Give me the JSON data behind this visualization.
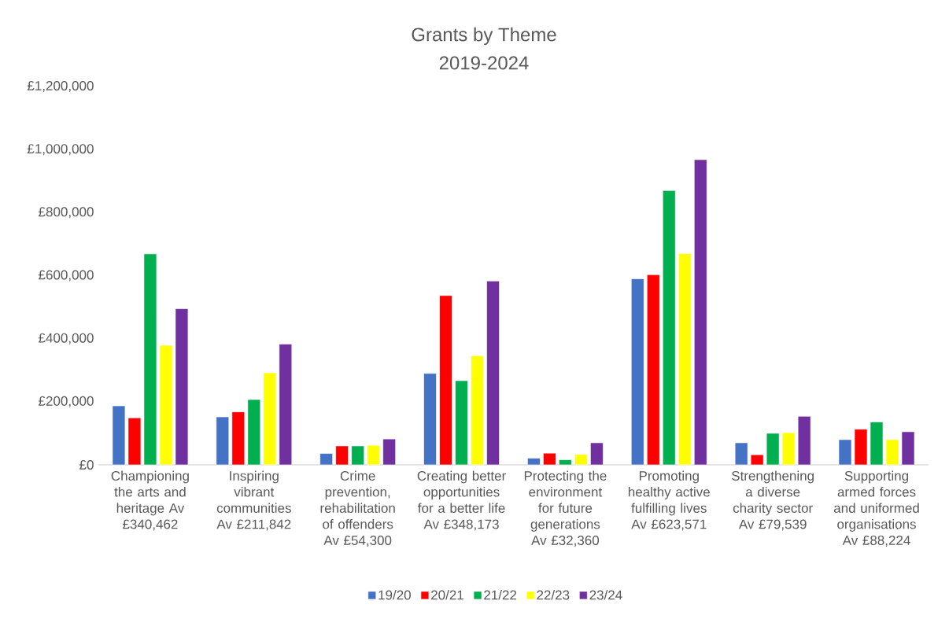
{
  "chart_data": {
    "type": "bar",
    "title": "Grants by Theme",
    "subtitle": "2019-2024",
    "categories": [
      "Championing the arts and heritage Av £340,462",
      "Inspiring vibrant communities Av £211,842",
      "Crime prevention, rehabilitation of offenders Av £54,300",
      "Creating better opportunities for a better life Av £348,173",
      "Protecting the environment for future generations Av £32,360",
      "Promoting healthy active fulfilling lives Av £623,571",
      "Strengthening a diverse charity sector Av £79,539",
      "Supporting armed forces and uniformed organisations Av £88,224"
    ],
    "series": [
      {
        "name": "19/20",
        "color": "#4472c4",
        "values": [
          187000,
          152000,
          36000,
          290000,
          21000,
          590000,
          70000,
          80000
        ]
      },
      {
        "name": "20/21",
        "color": "#ff0000",
        "values": [
          149000,
          168000,
          60000,
          537000,
          37000,
          603000,
          32000,
          113000
        ]
      },
      {
        "name": "21/22",
        "color": "#00b050",
        "values": [
          669000,
          207000,
          60000,
          267000,
          16000,
          870000,
          100000,
          136000
        ]
      },
      {
        "name": "22/23",
        "color": "#ffff00",
        "values": [
          379000,
          292000,
          62000,
          346000,
          33000,
          670000,
          102000,
          80000
        ]
      },
      {
        "name": "23/24",
        "color": "#7030a0",
        "values": [
          495000,
          383000,
          82000,
          583000,
          70000,
          968000,
          154000,
          105000
        ]
      }
    ],
    "ylim": [
      0,
      1200000
    ],
    "yticks": [
      {
        "value": 0,
        "label": "£0"
      },
      {
        "value": 200000,
        "label": "£200,000"
      },
      {
        "value": 400000,
        "label": "£400,000"
      },
      {
        "value": 600000,
        "label": "£600,000"
      },
      {
        "value": 800000,
        "label": "£800,000"
      },
      {
        "value": 1000000,
        "label": "£1,000,000"
      },
      {
        "value": 1200000,
        "label": "£1,200,000"
      }
    ],
    "legend": "bottom"
  }
}
